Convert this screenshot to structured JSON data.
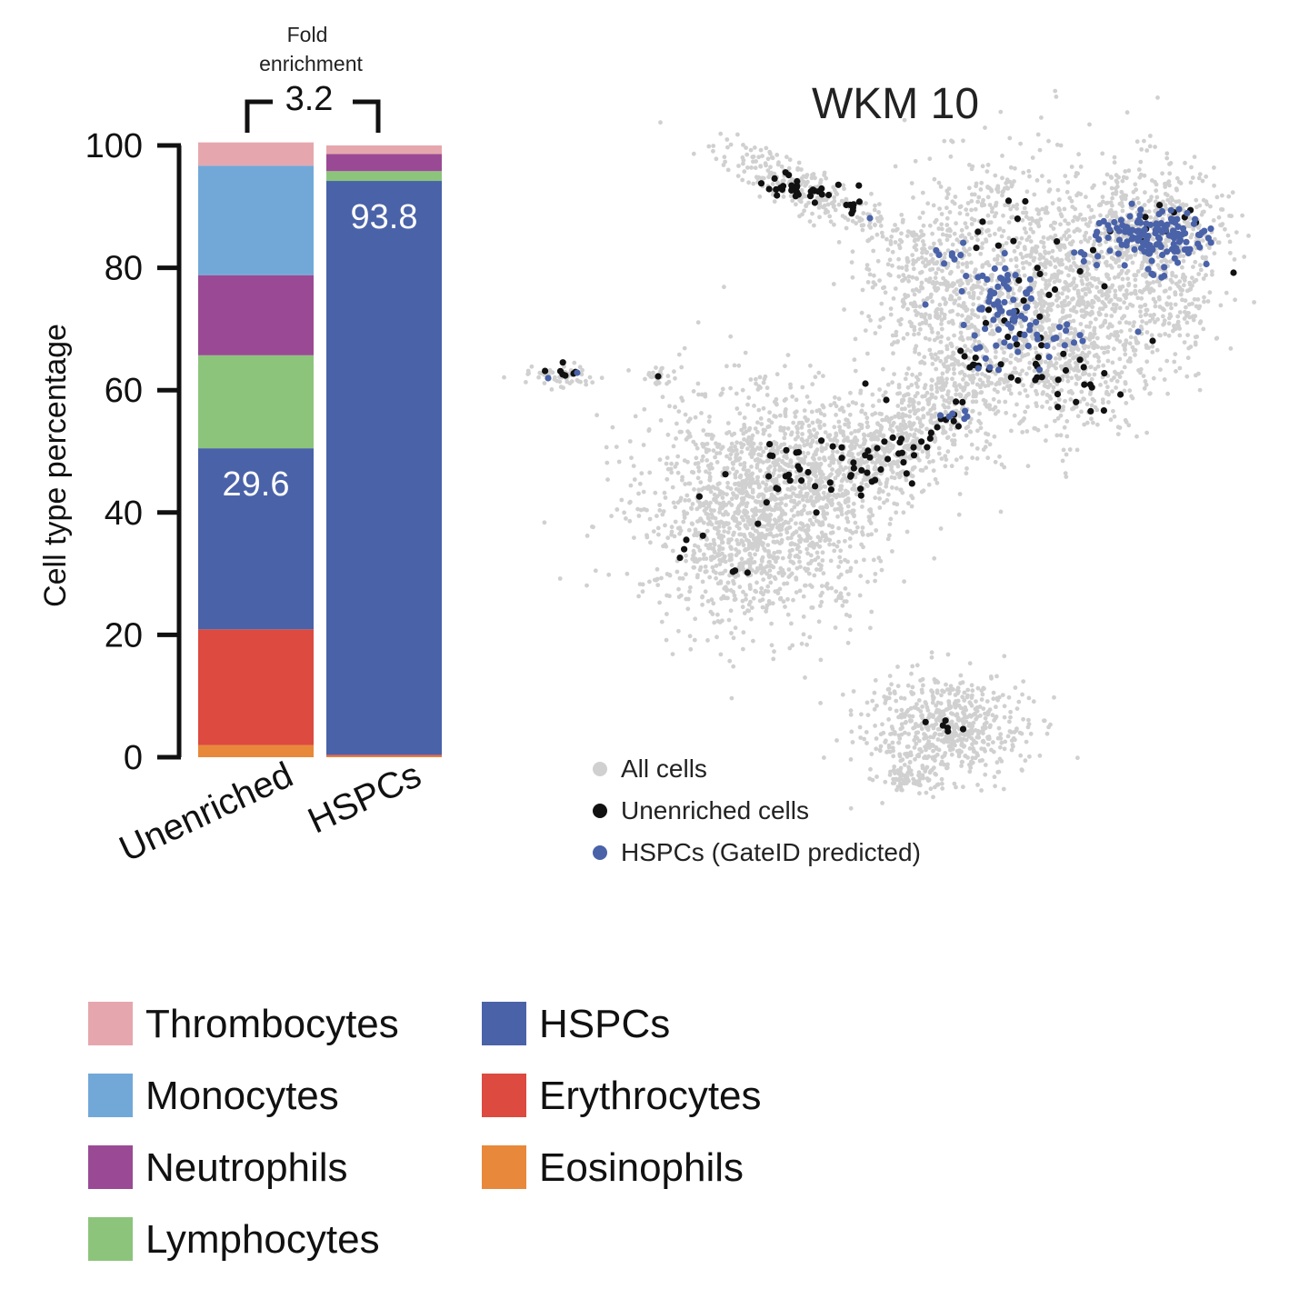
{
  "chart_data": [
    {
      "type": "bar",
      "stacked": true,
      "categories": [
        "Unenriched",
        "HSPCs"
      ],
      "series": [
        {
          "name": "Eosinophils",
          "color": "#e8883a",
          "values": [
            2.0,
            0.2
          ]
        },
        {
          "name": "Erythrocytes",
          "color": "#dc4a40",
          "values": [
            18.9,
            0.2
          ]
        },
        {
          "name": "HSPCs",
          "color": "#4a62a8",
          "values": [
            29.6,
            93.8
          ]
        },
        {
          "name": "Lymphocytes",
          "color": "#8cc47c",
          "values": [
            15.2,
            1.6
          ]
        },
        {
          "name": "Neutrophils",
          "color": "#9a4a94",
          "values": [
            13.1,
            2.8
          ]
        },
        {
          "name": "Monocytes",
          "color": "#72a8d8",
          "values": [
            17.9,
            0.0
          ]
        },
        {
          "name": "Thrombocytes",
          "color": "#e5a7ad",
          "values": [
            3.8,
            1.4
          ]
        }
      ],
      "ylabel": "Cell type percentage",
      "ylim": [
        0,
        100
      ],
      "yticks": [
        "0",
        "20",
        "40",
        "60",
        "80",
        "100"
      ],
      "data_labels": [
        {
          "category": "Unenriched",
          "series": "HSPCs",
          "text": "29.6"
        },
        {
          "category": "HSPCs",
          "series": "HSPCs",
          "text": "93.8"
        }
      ],
      "annotation": {
        "title": "Fold\nenrichment",
        "value": "3.2"
      }
    },
    {
      "type": "scatter",
      "title": "WKM 10",
      "axes_visible": false,
      "legend_position": "bottom-left",
      "series": [
        {
          "name": "All cells",
          "color": "#d0d0d0"
        },
        {
          "name": "Unenriched cells",
          "color": "#111111"
        },
        {
          "name": "HSPCs (GateID predicted)",
          "color": "#4a62a8"
        }
      ]
    }
  ],
  "legend": {
    "columns": [
      [
        {
          "label": "Thrombocytes",
          "color": "#e5a7ad"
        },
        {
          "label": "Monocytes",
          "color": "#72a8d8"
        },
        {
          "label": "Neutrophils",
          "color": "#9a4a94"
        },
        {
          "label": "Lymphocytes",
          "color": "#8cc47c"
        }
      ],
      [
        {
          "label": "HSPCs",
          "color": "#4a62a8"
        },
        {
          "label": "Erythrocytes",
          "color": "#dc4a40"
        },
        {
          "label": "Eosinophils",
          "color": "#e8883a"
        }
      ]
    ]
  }
}
